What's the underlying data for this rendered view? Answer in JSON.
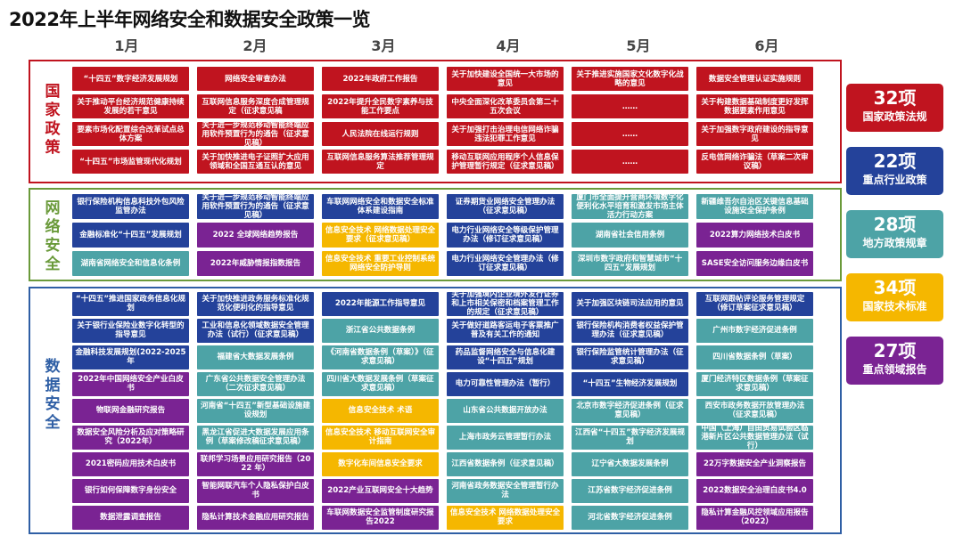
{
  "title": "2022年上半年网络安全和数据安全政策一览",
  "months": [
    "1月",
    "2月",
    "3月",
    "4月",
    "5月",
    "6月"
  ],
  "sections": {
    "national": {
      "label": "国家政策",
      "color": "#c0141f",
      "cells": [
        {
          "text": "“十四五”数字经济发展规划",
          "color": "red"
        },
        {
          "text": "网络安全审查办法",
          "color": "red"
        },
        {
          "text": "2022年政府工作报告",
          "color": "red"
        },
        {
          "text": "关于加快建设全国统一大市场的意见",
          "color": "red"
        },
        {
          "text": "关于推进实施国家文化数字化战略的意见",
          "color": "red"
        },
        {
          "text": "数据安全管理认证实施规则",
          "color": "red"
        },
        {
          "text": "关于推动平台经济规范健康持续发展的若干意见",
          "color": "red"
        },
        {
          "text": "互联网信息服务深度合成管理规定（征求意见稿",
          "color": "red"
        },
        {
          "text": "2022年提升全民数字素养与技能工作要点",
          "color": "red"
        },
        {
          "text": "中央全面深化改革委员会第二十五次会议",
          "color": "red"
        },
        {
          "text": "……",
          "color": "red"
        },
        {
          "text": "关于构建数据基础制度更好发挥数据要素作用意见",
          "color": "red"
        },
        {
          "text": "要素市场化配置综合改革试点总体方案",
          "color": "red"
        },
        {
          "text": "关于进一步规范移动智能终端应用软件预置行为的通告（征求意见稿）",
          "color": "red"
        },
        {
          "text": "人民法院在线运行规则",
          "color": "red"
        },
        {
          "text": "关于加强打击治理电信网络诈骗违法犯罪工作意见",
          "color": "red"
        },
        {
          "text": "……",
          "color": "red"
        },
        {
          "text": "关于加强数字政府建设的指导意见",
          "color": "red"
        },
        {
          "text": "“十四五”市场监管现代化规划",
          "color": "red"
        },
        {
          "text": "关于加快推进电子证照扩大应用领域和全国互通互认的意见",
          "color": "red"
        },
        {
          "text": "互联网信息服务算法推荐管理规定",
          "color": "red"
        },
        {
          "text": "移动互联网应用程序个人信息保护管理暂行规定（征求意见稿）",
          "color": "red"
        },
        {
          "text": "……",
          "color": "red"
        },
        {
          "text": "反电信网络诈骗法（草案二次审议稿）",
          "color": "red"
        }
      ]
    },
    "network": {
      "label": "网络安全",
      "color": "#6a9a3a",
      "cells": [
        {
          "text": "银行保险机构信息科技外包风险监管办法",
          "color": "blue"
        },
        {
          "text": "关于进一步规范移动智能终端应用软件预置行为的通告（征求意见稿）",
          "color": "blue"
        },
        {
          "text": "车联网网络安全和数据安全标准体系建设指南",
          "color": "blue"
        },
        {
          "text": "证券期货业网络安全管理办法（征求意见稿）",
          "color": "blue"
        },
        {
          "text": "厦门市全面提升营商环境数字化便利化水平培育和激发市场主体活力行动方案",
          "color": "teal"
        },
        {
          "text": "新疆维吾尔自治区关键信息基础设施安全保护条例",
          "color": "teal"
        },
        {
          "text": "金融标准化“十四五”发展规划",
          "color": "blue"
        },
        {
          "text": "2022 全球网络趋势报告",
          "color": "purple"
        },
        {
          "text": "信息安全技术 网络数据处理安全要求（征求意见稿）",
          "color": "yellow"
        },
        {
          "text": "电力行业网络安全等级保护管理办法（修订征求意见稿）",
          "color": "blue"
        },
        {
          "text": "湖南省社会信用条例",
          "color": "teal"
        },
        {
          "text": "2022算力网络技术白皮书",
          "color": "purple"
        },
        {
          "text": "湖南省网络安全和信息化条例",
          "color": "teal"
        },
        {
          "text": "2022年威胁情报指数报告",
          "color": "purple"
        },
        {
          "text": "信息安全技术 重要工业控制系统网络安全防护导则",
          "color": "yellow"
        },
        {
          "text": "电力行业网络安全管理办法（修订征求意见稿）",
          "color": "blue"
        },
        {
          "text": "深圳市数字政府和智慧城市“十四五”发展规划",
          "color": "teal"
        },
        {
          "text": "SASE安全访问服务边缘白皮书",
          "color": "purple"
        }
      ]
    },
    "data": {
      "label": "数据安全",
      "color": "#2f5fa5",
      "cells": [
        {
          "text": "“十四五”推进国家政务信息化规划",
          "color": "blue"
        },
        {
          "text": "关于加快推进政务服务标准化规范化便利化的指导意见",
          "color": "blue"
        },
        {
          "text": "2022年能源工作指导意见",
          "color": "blue"
        },
        {
          "text": "关于加强境内企业境外发行证券和上市相关保密和档案管理工作的规定（征求意见稿）",
          "color": "blue"
        },
        {
          "text": "关于加强区块链司法应用的意见",
          "color": "blue"
        },
        {
          "text": "互联网跟帖评论服务管理规定（修订草案征求意见稿）",
          "color": "blue"
        },
        {
          "text": "关于银行业保险业数字化转型的指导意见",
          "color": "blue"
        },
        {
          "text": "工业和信息化领域数据安全管理办法（试行）（征求意见稿）",
          "color": "blue"
        },
        {
          "text": "浙江省公共数据条例",
          "color": "teal"
        },
        {
          "text": "关于做好道路客运电子客票推广普及有关工作的通知",
          "color": "blue"
        },
        {
          "text": "银行保险机构消费者权益保护管理办法（征求意见稿）",
          "color": "blue"
        },
        {
          "text": "广州市数字经济促进条例",
          "color": "teal"
        },
        {
          "text": "金融科技发展规划(2022-2025年",
          "color": "blue"
        },
        {
          "text": "福建省大数据发展条例",
          "color": "teal"
        },
        {
          "text": "《河南省数据条例（草案）》（征求意见稿）",
          "color": "teal"
        },
        {
          "text": "药品监督网络安全与信息化建设“十四五”规划",
          "color": "blue"
        },
        {
          "text": "银行保险监管统计管理办法（征求意见稿）",
          "color": "blue"
        },
        {
          "text": "四川省数据条例（草案）",
          "color": "teal"
        },
        {
          "text": "2022年中国网络安全产业白皮书",
          "color": "purple"
        },
        {
          "text": "广东省公共数据安全管理办法（二次征求意见稿）",
          "color": "teal"
        },
        {
          "text": "四川省大数据发展条例（草案征求意见稿）",
          "color": "teal"
        },
        {
          "text": "电力可靠性管理办法（暂行）",
          "color": "blue"
        },
        {
          "text": "“十四五”生物经济发展规划",
          "color": "blue"
        },
        {
          "text": "厦门经济特区数据条例（草案征求意见稿）",
          "color": "teal"
        },
        {
          "text": "物联网金融研究报告",
          "color": "purple"
        },
        {
          "text": "河南省“十四五”新型基础设施建设规划",
          "color": "teal"
        },
        {
          "text": "信息安全技术 术语",
          "color": "yellow"
        },
        {
          "text": "山东省公共数据开放办法",
          "color": "teal"
        },
        {
          "text": "北京市数字经济促进条例（征求意见稿）",
          "color": "teal"
        },
        {
          "text": "西安市政务数据开放管理办法（征求意见稿）",
          "color": "teal"
        },
        {
          "text": "数据安全风险分析及应对策略研究（2022年）",
          "color": "purple"
        },
        {
          "text": "黑龙江省促进大数据发展应用条例（草案修改稿征求意见稿）",
          "color": "teal"
        },
        {
          "text": "信息安全技术 移动互联网安全审计指南",
          "color": "yellow"
        },
        {
          "text": "上海市政务云管理暂行办法",
          "color": "teal"
        },
        {
          "text": "江西省“十四五”数字经济发展规划",
          "color": "teal"
        },
        {
          "text": "中国（上海）自由贸易试验区临港新片区公共数据管理办法（试行）",
          "color": "teal"
        },
        {
          "text": "2021密码应用技术白皮书",
          "color": "purple"
        },
        {
          "text": "联邦学习场景应用研究报告（2022 年）",
          "color": "purple"
        },
        {
          "text": "数字化车间信息安全要求",
          "color": "yellow"
        },
        {
          "text": "江西省数据条例（征求意见稿）",
          "color": "teal"
        },
        {
          "text": "辽宁省大数据发展条例",
          "color": "teal"
        },
        {
          "text": "22万字数据安全产业洞察报告",
          "color": "purple"
        },
        {
          "text": "银行如何保障数字身份安全",
          "color": "purple"
        },
        {
          "text": "智能网联汽车个人隐私保护白皮书",
          "color": "purple"
        },
        {
          "text": "2022产业互联网安全十大趋势",
          "color": "purple"
        },
        {
          "text": "河南省政务数据安全管理暂行办法",
          "color": "teal"
        },
        {
          "text": "江苏省数字经济促进条例",
          "color": "teal"
        },
        {
          "text": "2022数据安全治理白皮书4.0",
          "color": "purple"
        },
        {
          "text": "数据泄露调查报告",
          "color": "purple"
        },
        {
          "text": "隐私计算技术金融应用研究报告",
          "color": "purple"
        },
        {
          "text": "车联网数据安全监管制度研究报告2022",
          "color": "purple"
        },
        {
          "text": "信息安全技术 网络数据处理安全要求",
          "color": "yellow"
        },
        {
          "text": "河北省数字经济促进条例",
          "color": "teal"
        },
        {
          "text": "隐私计算金融风控领域应用报告（2022）",
          "color": "purple"
        }
      ]
    }
  },
  "badges": [
    {
      "count": "32项",
      "label": "国家政策法规",
      "color": "#c0141f"
    },
    {
      "count": "22项",
      "label": "重点行业政策",
      "color": "#24429a"
    },
    {
      "count": "28项",
      "label": "地方政策规章",
      "color": "#4da3a6"
    },
    {
      "count": "34项",
      "label": "国家技术标准",
      "color": "#f5b700"
    },
    {
      "count": "27项",
      "label": "重点领域报告",
      "color": "#7a2393"
    }
  ]
}
